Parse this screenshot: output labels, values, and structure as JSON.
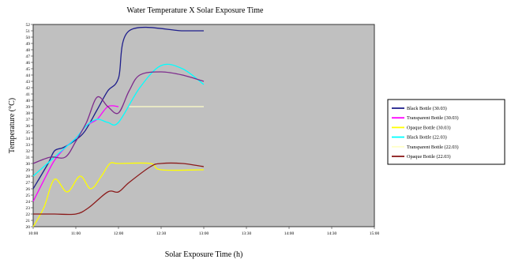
{
  "chart_data": {
    "type": "line",
    "title": "Water Temperature X Solar Exposure Time",
    "xlabel": "Solar Exposure Time (h)",
    "ylabel": "Temperature (°C)",
    "x": [
      "10:00",
      "11:00",
      "12:00",
      "12:30",
      "13:00",
      "13:30",
      "14:00",
      "14:30",
      "15:00"
    ],
    "ylim": [
      20,
      52
    ],
    "yticks": [
      20,
      21,
      22,
      23,
      24,
      25,
      26,
      27,
      28,
      29,
      30,
      31,
      32,
      33,
      34,
      35,
      36,
      37,
      38,
      39,
      40,
      41,
      42,
      43,
      44,
      45,
      46,
      47,
      48,
      49,
      50,
      51,
      52
    ],
    "grid": false,
    "legend_position": "right",
    "plot_background": "#c0c0c0",
    "series": [
      {
        "name": "Black Bottle (30.03)",
        "color": "#1f1f8c",
        "points": [
          [
            0,
            26
          ],
          [
            0.35,
            30
          ],
          [
            0.5,
            32
          ],
          [
            0.7,
            32.5
          ],
          [
            0.95,
            33.5
          ],
          [
            1.2,
            35
          ],
          [
            1.5,
            38.5
          ],
          [
            1.75,
            41.5
          ],
          [
            2,
            43.5
          ],
          [
            2.25,
            51
          ],
          [
            3.5,
            51
          ],
          [
            4,
            51
          ]
        ]
      },
      {
        "name": "Transparent Bottle (30.03)",
        "color": "#ff00ff",
        "points": [
          [
            0,
            24
          ],
          [
            0.3,
            28
          ],
          [
            0.5,
            30.5
          ],
          [
            0.75,
            32.5
          ],
          [
            1,
            34
          ],
          [
            1.25,
            36
          ],
          [
            1.5,
            37
          ],
          [
            1.75,
            39
          ],
          [
            2,
            39
          ]
        ]
      },
      {
        "name": "Opaque Bottle (30.03)",
        "color": "#ffff00",
        "points": [
          [
            0,
            20
          ],
          [
            0.25,
            23
          ],
          [
            0.5,
            27.5
          ],
          [
            0.8,
            25.5
          ],
          [
            1.1,
            28
          ],
          [
            1.35,
            26
          ],
          [
            1.6,
            28
          ],
          [
            1.8,
            30
          ],
          [
            2,
            30
          ],
          [
            2.75,
            30
          ],
          [
            3,
            29
          ],
          [
            4,
            29
          ]
        ]
      },
      {
        "name": "Black Bottle (22.03)",
        "color": "#00ffff",
        "points": [
          [
            0,
            28
          ],
          [
            0.5,
            31
          ],
          [
            0.75,
            32.5
          ],
          [
            1,
            34
          ],
          [
            1.25,
            36
          ],
          [
            1.5,
            37
          ],
          [
            1.75,
            36.5
          ],
          [
            2,
            36.5
          ],
          [
            2.5,
            42
          ],
          [
            3,
            45.5
          ],
          [
            3.5,
            45
          ],
          [
            4,
            42.5
          ]
        ]
      },
      {
        "name": "Transparent Bottle (22.03)",
        "color": "#ffffc8",
        "points": [
          [
            2.25,
            39
          ],
          [
            4,
            39
          ]
        ]
      },
      {
        "name": "Opaque Bottle (22.03)",
        "color": "#8b1a1a",
        "points": [
          [
            0,
            22
          ],
          [
            0.5,
            22
          ],
          [
            1,
            22
          ],
          [
            1.3,
            23
          ],
          [
            1.75,
            25.5
          ],
          [
            2,
            25.5
          ],
          [
            2.25,
            27
          ],
          [
            2.75,
            29.5
          ],
          [
            3,
            30
          ],
          [
            3.5,
            30
          ],
          [
            4,
            29.5
          ]
        ]
      },
      {
        "name": "",
        "color": "#7d2a8c",
        "points": [
          [
            0,
            30
          ],
          [
            0.4,
            31
          ],
          [
            0.75,
            31
          ],
          [
            1,
            33.5
          ],
          [
            1.25,
            36.5
          ],
          [
            1.5,
            40.5
          ],
          [
            1.75,
            39
          ],
          [
            2,
            38
          ],
          [
            2.25,
            41.5
          ],
          [
            2.5,
            44
          ],
          [
            3,
            44.5
          ],
          [
            3.5,
            44
          ],
          [
            4,
            43
          ]
        ]
      }
    ]
  }
}
